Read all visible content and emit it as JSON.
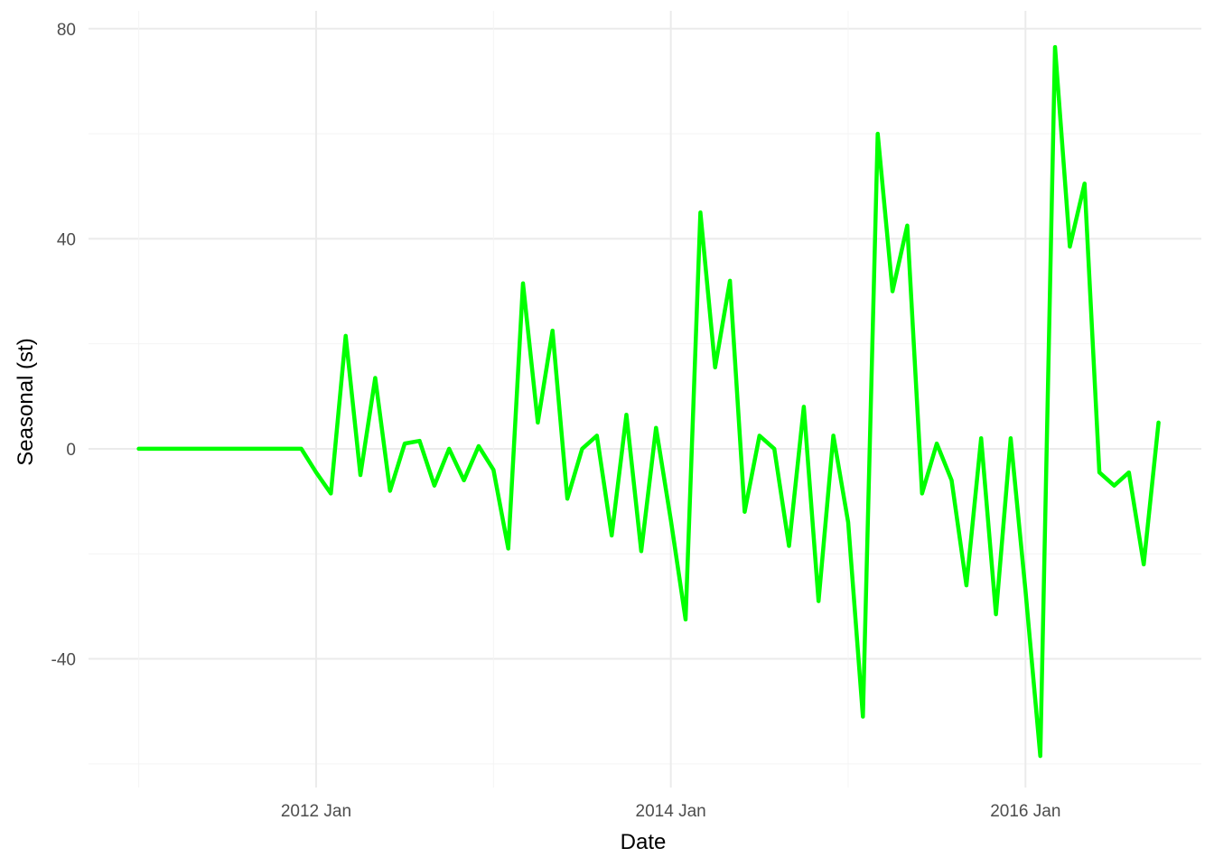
{
  "chart_data": {
    "type": "line",
    "title": "",
    "xlabel": "Date",
    "ylabel": "Seasonal (st)",
    "x_axis_type": "date",
    "x_range": [
      "2011-01",
      "2017-01"
    ],
    "x_ticks": [
      {
        "date": "2012-01",
        "label": "2012 Jan"
      },
      {
        "date": "2014-01",
        "label": "2014 Jan"
      },
      {
        "date": "2016-01",
        "label": "2016 Jan"
      }
    ],
    "ylim": [
      -60,
      80
    ],
    "y_ticks": [
      -40,
      0,
      40,
      80
    ],
    "grid": true,
    "legend": "none",
    "series": [
      {
        "color": "#00ff00",
        "points": [
          {
            "x": "2011-01",
            "y": 0
          },
          {
            "x": "2011-02",
            "y": 0
          },
          {
            "x": "2011-03",
            "y": 0
          },
          {
            "x": "2011-04",
            "y": 0
          },
          {
            "x": "2011-05",
            "y": 0
          },
          {
            "x": "2011-06",
            "y": 0
          },
          {
            "x": "2011-07",
            "y": 0
          },
          {
            "x": "2011-08",
            "y": 0
          },
          {
            "x": "2011-09",
            "y": 0
          },
          {
            "x": "2011-10",
            "y": 0
          },
          {
            "x": "2011-11",
            "y": 0
          },
          {
            "x": "2011-12",
            "y": 0
          },
          {
            "x": "2012-01",
            "y": -4.5
          },
          {
            "x": "2012-02",
            "y": -8.5
          },
          {
            "x": "2012-03",
            "y": 21.5
          },
          {
            "x": "2012-04",
            "y": -5
          },
          {
            "x": "2012-05",
            "y": 13.5
          },
          {
            "x": "2012-06",
            "y": -8
          },
          {
            "x": "2012-07",
            "y": 1
          },
          {
            "x": "2012-08",
            "y": 1.5
          },
          {
            "x": "2012-09",
            "y": -7
          },
          {
            "x": "2012-10",
            "y": 0
          },
          {
            "x": "2012-11",
            "y": -6
          },
          {
            "x": "2012-12",
            "y": 0.5
          },
          {
            "x": "2013-01",
            "y": -4
          },
          {
            "x": "2013-02",
            "y": -19
          },
          {
            "x": "2013-03",
            "y": 31.5
          },
          {
            "x": "2013-04",
            "y": 5
          },
          {
            "x": "2013-05",
            "y": 22.5
          },
          {
            "x": "2013-06",
            "y": -9.5
          },
          {
            "x": "2013-07",
            "y": 0
          },
          {
            "x": "2013-08",
            "y": 2.5
          },
          {
            "x": "2013-09",
            "y": -16.5
          },
          {
            "x": "2013-10",
            "y": 6.5
          },
          {
            "x": "2013-11",
            "y": -19.5
          },
          {
            "x": "2013-12",
            "y": 4
          },
          {
            "x": "2014-01",
            "y": -13.5
          },
          {
            "x": "2014-02",
            "y": -32.5
          },
          {
            "x": "2014-03",
            "y": 45
          },
          {
            "x": "2014-04",
            "y": 15.5
          },
          {
            "x": "2014-05",
            "y": 32
          },
          {
            "x": "2014-06",
            "y": -12
          },
          {
            "x": "2014-07",
            "y": 2.5
          },
          {
            "x": "2014-08",
            "y": 0
          },
          {
            "x": "2014-09",
            "y": -18.5
          },
          {
            "x": "2014-10",
            "y": 8
          },
          {
            "x": "2014-11",
            "y": -29
          },
          {
            "x": "2014-12",
            "y": 2.5
          },
          {
            "x": "2015-01",
            "y": -14
          },
          {
            "x": "2015-02",
            "y": -51
          },
          {
            "x": "2015-03",
            "y": 60
          },
          {
            "x": "2015-04",
            "y": 30
          },
          {
            "x": "2015-05",
            "y": 42.5
          },
          {
            "x": "2015-06",
            "y": -8.5
          },
          {
            "x": "2015-07",
            "y": 1
          },
          {
            "x": "2015-08",
            "y": -6
          },
          {
            "x": "2015-09",
            "y": -26
          },
          {
            "x": "2015-10",
            "y": 2
          },
          {
            "x": "2015-11",
            "y": -31.5
          },
          {
            "x": "2015-12",
            "y": 2
          },
          {
            "x": "2016-01",
            "y": -27
          },
          {
            "x": "2016-02",
            "y": -58.5
          },
          {
            "x": "2016-03",
            "y": 76.5
          },
          {
            "x": "2016-04",
            "y": 38.5
          },
          {
            "x": "2016-05",
            "y": 50.5
          },
          {
            "x": "2016-06",
            "y": -4.5
          },
          {
            "x": "2016-07",
            "y": -7
          },
          {
            "x": "2016-08",
            "y": -4.5
          },
          {
            "x": "2016-09",
            "y": -22
          },
          {
            "x": "2016-10",
            "y": 5
          }
        ]
      }
    ]
  }
}
